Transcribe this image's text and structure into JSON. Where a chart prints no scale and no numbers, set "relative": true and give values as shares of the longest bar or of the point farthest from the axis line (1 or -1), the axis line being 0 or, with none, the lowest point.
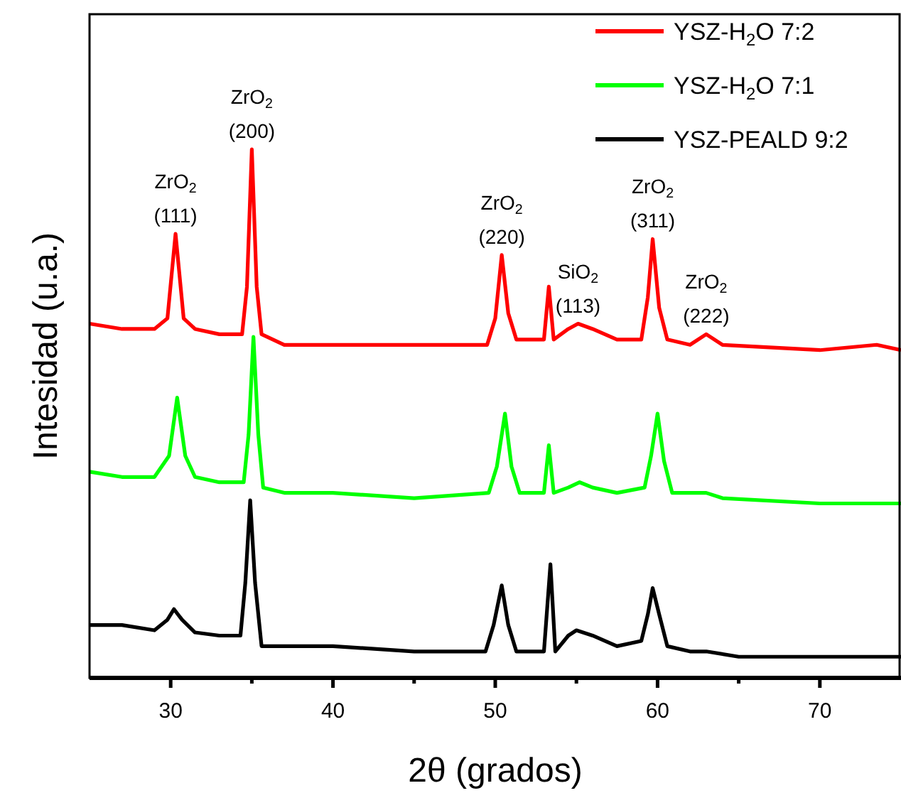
{
  "chart_data": {
    "type": "line",
    "relative": true,
    "xlabel": "2θ (grados)",
    "ylabel": "Intesidad (u.a.)",
    "xlim": [
      25,
      75
    ],
    "xticks": [
      30,
      {
        "value": 35,
        "label": null
      },
      40,
      {
        "value": 45,
        "label": null
      },
      50,
      {
        "value": 55,
        "label": null
      },
      60,
      {
        "value": 65,
        "label": null
      },
      70
    ],
    "tick_labels": "x",
    "legend": "top right",
    "grid": false,
    "marker": "none",
    "line_style": "solid",
    "series": [
      {
        "name": "YSZ-H$_{2}$O 7:2",
        "color": "#ff0000",
        "x": [
          25,
          27,
          29,
          29.8,
          30.3,
          30.8,
          31.5,
          33,
          34.4,
          34.7,
          35,
          35.3,
          35.6,
          37,
          40,
          45,
          49.5,
          50,
          50.4,
          50.8,
          51.3,
          53,
          53.3,
          53.6,
          54.5,
          55.1,
          56,
          57.5,
          59,
          59.4,
          59.7,
          60.1,
          60.6,
          62,
          63,
          64,
          70,
          73.5,
          75
        ],
        "values": [
          0.67,
          0.66,
          0.66,
          0.68,
          0.84,
          0.68,
          0.66,
          0.65,
          0.65,
          0.74,
          1,
          0.74,
          0.65,
          0.63,
          0.63,
          0.63,
          0.63,
          0.68,
          0.8,
          0.69,
          0.64,
          0.64,
          0.74,
          0.64,
          0.66,
          0.67,
          0.66,
          0.64,
          0.64,
          0.72,
          0.83,
          0.7,
          0.64,
          0.63,
          0.65,
          0.63,
          0.62,
          0.63,
          0.62
        ]
      },
      {
        "name": "YSZ-H$_{2}$O 7:1",
        "color": "#00ff00",
        "x": [
          25,
          27,
          29,
          29.9,
          30.4,
          30.9,
          31.5,
          33,
          34.5,
          34.8,
          35.1,
          35.4,
          35.7,
          37,
          40,
          45,
          49.6,
          50.1,
          50.6,
          51,
          51.5,
          53,
          53.3,
          53.6,
          54.5,
          55.2,
          56,
          57.5,
          59.2,
          59.6,
          60,
          60.4,
          60.9,
          62,
          63,
          64,
          70,
          75
        ],
        "values": [
          0.39,
          0.38,
          0.38,
          0.42,
          0.53,
          0.42,
          0.38,
          0.37,
          0.37,
          0.46,
          0.645,
          0.46,
          0.36,
          0.35,
          0.35,
          0.34,
          0.35,
          0.4,
          0.5,
          0.4,
          0.35,
          0.35,
          0.44,
          0.35,
          0.36,
          0.37,
          0.36,
          0.35,
          0.36,
          0.42,
          0.5,
          0.41,
          0.35,
          0.35,
          0.35,
          0.34,
          0.33,
          0.33
        ]
      },
      {
        "name": "YSZ-PEALD 9:2",
        "color": "#000000",
        "x": [
          25,
          27,
          29,
          29.8,
          30.2,
          30.7,
          31.5,
          33,
          34.3,
          34.6,
          34.9,
          35.2,
          35.6,
          37,
          40,
          45,
          49.4,
          49.9,
          50.4,
          50.8,
          51.3,
          53,
          53.4,
          53.7,
          54.5,
          55,
          56,
          57.5,
          59,
          59.4,
          59.7,
          60.1,
          60.6,
          62,
          63,
          65,
          70,
          75
        ],
        "values": [
          0.1,
          0.1,
          0.09,
          0.11,
          0.13,
          0.11,
          0.086,
          0.08,
          0.08,
          0.18,
          0.336,
          0.18,
          0.06,
          0.06,
          0.06,
          0.05,
          0.05,
          0.1,
          0.175,
          0.1,
          0.05,
          0.05,
          0.215,
          0.05,
          0.08,
          0.09,
          0.08,
          0.06,
          0.07,
          0.12,
          0.17,
          0.12,
          0.06,
          0.05,
          0.05,
          0.04,
          0.04,
          0.04
        ]
      }
    ],
    "annotations": [
      {
        "text": "ZrO$_{2}$ (111)",
        "x": 30.3,
        "y": 0.84
      },
      {
        "text": "ZrO$_{2}$ (200)",
        "x": 35,
        "y": 1
      },
      {
        "text": "ZrO$_{2}$ (220)",
        "x": 50.4,
        "y": 0.8
      },
      {
        "text": "SiO$_{2}$ (113)",
        "x": 55.1,
        "y": 0.67
      },
      {
        "text": "ZrO$_{2}$ (311)",
        "x": 59.7,
        "y": 0.83
      },
      {
        "text": "ZrO$_{2}$ (222)",
        "x": 63,
        "y": 0.65
      }
    ]
  }
}
